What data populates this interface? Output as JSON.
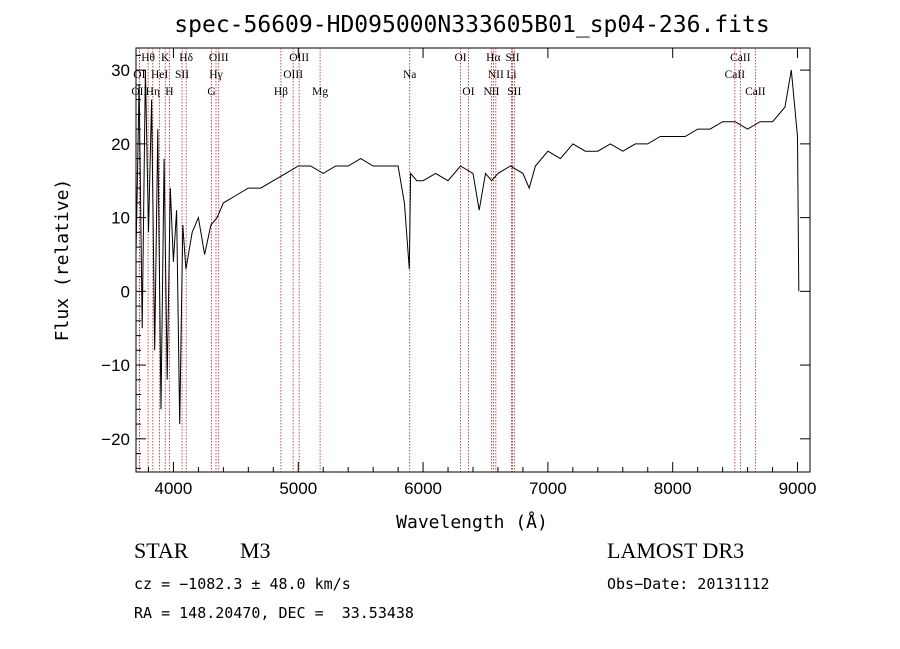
{
  "chart_data": {
    "type": "line",
    "title": "spec-56609-HD095000N333605B01_sp04-236.fits",
    "xlabel": "Wavelength (Å)",
    "ylabel": "Flux (relative)",
    "xlim": [
      3700,
      9100
    ],
    "ylim": [
      -24.5,
      33
    ],
    "xticks": [
      4000,
      5000,
      6000,
      7000,
      8000,
      9000
    ],
    "yticks": [
      -20,
      -10,
      0,
      10,
      20,
      30
    ],
    "grid": false,
    "series": [
      {
        "name": "flux",
        "x": [
          3700,
          3725,
          3750,
          3775,
          3800,
          3825,
          3850,
          3875,
          3900,
          3925,
          3950,
          3975,
          4000,
          4025,
          4050,
          4075,
          4100,
          4150,
          4200,
          4250,
          4300,
          4350,
          4400,
          4500,
          4600,
          4700,
          4800,
          4900,
          5000,
          5100,
          5200,
          5300,
          5400,
          5500,
          5600,
          5700,
          5800,
          5850,
          5890,
          5900,
          5950,
          6000,
          6100,
          6200,
          6300,
          6400,
          6450,
          6500,
          6550,
          6600,
          6700,
          6800,
          6850,
          6900,
          7000,
          7100,
          7200,
          7300,
          7400,
          7500,
          7600,
          7700,
          7800,
          7900,
          8000,
          8100,
          8200,
          8300,
          8400,
          8500,
          8600,
          8700,
          8800,
          8850,
          8900,
          8950,
          9000,
          9010
        ],
        "y": [
          5,
          28,
          -5,
          30,
          8,
          26,
          -8,
          22,
          -16,
          18,
          -12,
          14,
          4,
          11,
          -18,
          9,
          3,
          8,
          10,
          5,
          9,
          10,
          12,
          13,
          14,
          14,
          15,
          16,
          17,
          17,
          16,
          17,
          17,
          18,
          17,
          17,
          17,
          12,
          3,
          16,
          15,
          15,
          16,
          15,
          17,
          16,
          11,
          16,
          15,
          16,
          17,
          16,
          14,
          17,
          19,
          18,
          20,
          19,
          19,
          20,
          19,
          20,
          20,
          21,
          21,
          21,
          22,
          22,
          23,
          23,
          22,
          23,
          23,
          24,
          25,
          30,
          21,
          0
        ]
      }
    ],
    "lines": [
      {
        "label": "Hθ",
        "wave": 3797
      },
      {
        "label": "K",
        "wave": 3934
      },
      {
        "label": "Hδ",
        "wave": 4102
      },
      {
        "label": "OIII",
        "wave": 4363
      },
      {
        "label": "OIII",
        "wave": 5007
      },
      {
        "label": "OI",
        "wave": 6300
      },
      {
        "label": "Hα",
        "wave": 6563
      },
      {
        "label": "SII",
        "wave": 6717
      },
      {
        "label": "CaII",
        "wave": 8542
      },
      {
        "label": "OI",
        "wave": 3727
      },
      {
        "label": "HeI",
        "wave": 3889
      },
      {
        "label": "SII",
        "wave": 4069
      },
      {
        "label": "Hγ",
        "wave": 4341
      },
      {
        "label": "OIII",
        "wave": 4959
      },
      {
        "label": "Na",
        "wave": 5893
      },
      {
        "label": "NII",
        "wave": 6583
      },
      {
        "label": "Li",
        "wave": 6708
      },
      {
        "label": "CaII",
        "wave": 8498
      },
      {
        "label": "OII",
        "wave": 3727
      },
      {
        "label": "Hη",
        "wave": 3835
      },
      {
        "label": "H",
        "wave": 3968
      },
      {
        "label": "G",
        "wave": 4305
      },
      {
        "label": "Hβ",
        "wave": 4861
      },
      {
        "label": "Mg",
        "wave": 5175
      },
      {
        "label": "OI",
        "wave": 6364
      },
      {
        "label": "NII",
        "wave": 6548
      },
      {
        "label": "SII",
        "wave": 6731
      },
      {
        "label": "CaII",
        "wave": 8662
      }
    ]
  },
  "info": {
    "object_class": "STAR",
    "subclass": "M3",
    "survey": "LAMOST DR3",
    "cz": "cz = −1082.3 ± 48.0 km/s",
    "obs_date": "Obs−Date: 20131112",
    "coords": "RA = 148.20470, DEC =  33.53438"
  }
}
